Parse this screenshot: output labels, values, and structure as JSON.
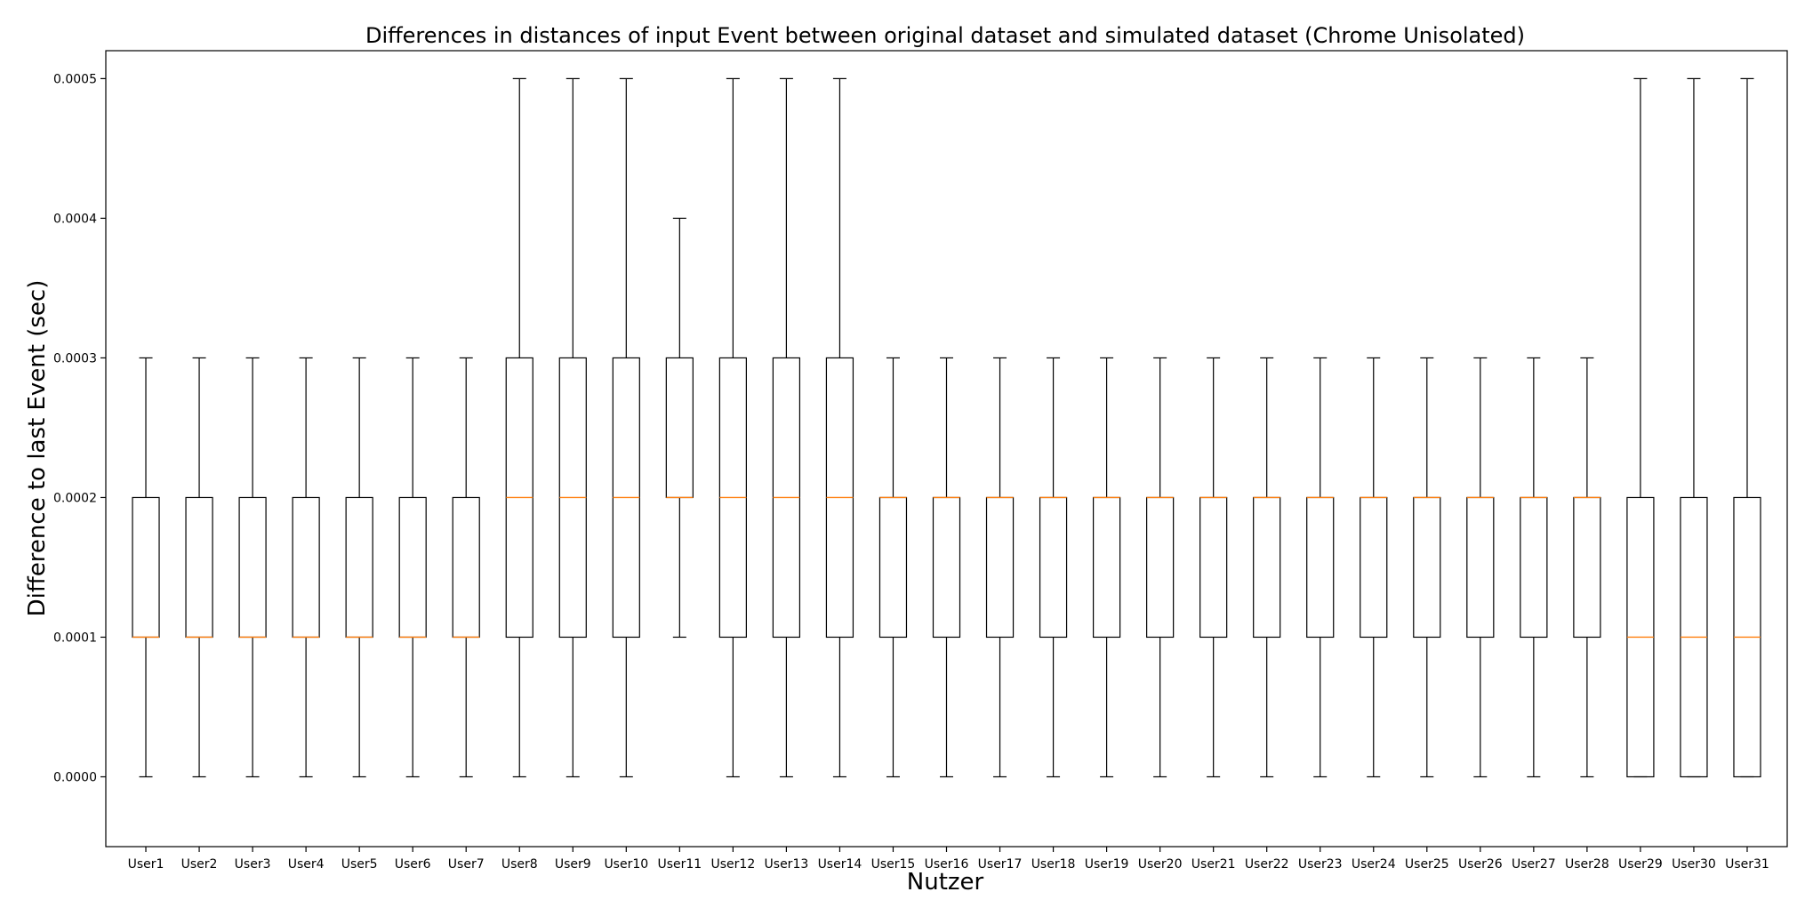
{
  "chart_data": {
    "type": "box",
    "title": "Differences in distances of input Event between original dataset and simulated dataset (Chrome Unisolated)",
    "xlabel": "Nutzer",
    "ylabel": "Difference to last Event (sec)",
    "ylim": [
      -5e-05,
      0.00052
    ],
    "yticks": [
      "0.0000",
      "0.0001",
      "0.0002",
      "0.0003",
      "0.0004",
      "0.0005"
    ],
    "grid": false,
    "colors": {
      "box": "#000000",
      "median": "#ff7f0e",
      "background": "#ffffff"
    },
    "categories": [
      "User1",
      "User2",
      "User3",
      "User4",
      "User5",
      "User6",
      "User7",
      "User8",
      "User9",
      "User10",
      "User11",
      "User12",
      "User13",
      "User14",
      "User15",
      "User16",
      "User17",
      "User18",
      "User19",
      "User20",
      "User21",
      "User22",
      "User23",
      "User24",
      "User25",
      "User26",
      "User27",
      "User28",
      "User29",
      "User30",
      "User31"
    ],
    "boxes": [
      {
        "min": 0.0,
        "q1": 0.0001,
        "median": 0.0001,
        "q3": 0.0002,
        "max": 0.0003
      },
      {
        "min": 0.0,
        "q1": 0.0001,
        "median": 0.0001,
        "q3": 0.0002,
        "max": 0.0003
      },
      {
        "min": 0.0,
        "q1": 0.0001,
        "median": 0.0001,
        "q3": 0.0002,
        "max": 0.0003
      },
      {
        "min": 0.0,
        "q1": 0.0001,
        "median": 0.0001,
        "q3": 0.0002,
        "max": 0.0003
      },
      {
        "min": 0.0,
        "q1": 0.0001,
        "median": 0.0001,
        "q3": 0.0002,
        "max": 0.0003
      },
      {
        "min": 0.0,
        "q1": 0.0001,
        "median": 0.0001,
        "q3": 0.0002,
        "max": 0.0003
      },
      {
        "min": 0.0,
        "q1": 0.0001,
        "median": 0.0001,
        "q3": 0.0002,
        "max": 0.0003
      },
      {
        "min": 0.0,
        "q1": 0.0001,
        "median": 0.0002,
        "q3": 0.0003,
        "max": 0.0005
      },
      {
        "min": 0.0,
        "q1": 0.0001,
        "median": 0.0002,
        "q3": 0.0003,
        "max": 0.0005
      },
      {
        "min": 0.0,
        "q1": 0.0001,
        "median": 0.0002,
        "q3": 0.0003,
        "max": 0.0005
      },
      {
        "min": 0.0001,
        "q1": 0.0002,
        "median": 0.0002,
        "q3": 0.0003,
        "max": 0.0004
      },
      {
        "min": 0.0,
        "q1": 0.0001,
        "median": 0.0002,
        "q3": 0.0003,
        "max": 0.0005
      },
      {
        "min": 0.0,
        "q1": 0.0001,
        "median": 0.0002,
        "q3": 0.0003,
        "max": 0.0005
      },
      {
        "min": 0.0,
        "q1": 0.0001,
        "median": 0.0002,
        "q3": 0.0003,
        "max": 0.0005
      },
      {
        "min": 0.0,
        "q1": 0.0001,
        "median": 0.0002,
        "q3": 0.0002,
        "max": 0.0003
      },
      {
        "min": 0.0,
        "q1": 0.0001,
        "median": 0.0002,
        "q3": 0.0002,
        "max": 0.0003
      },
      {
        "min": 0.0,
        "q1": 0.0001,
        "median": 0.0002,
        "q3": 0.0002,
        "max": 0.0003
      },
      {
        "min": 0.0,
        "q1": 0.0001,
        "median": 0.0002,
        "q3": 0.0002,
        "max": 0.0003
      },
      {
        "min": 0.0,
        "q1": 0.0001,
        "median": 0.0002,
        "q3": 0.0002,
        "max": 0.0003
      },
      {
        "min": 0.0,
        "q1": 0.0001,
        "median": 0.0002,
        "q3": 0.0002,
        "max": 0.0003
      },
      {
        "min": 0.0,
        "q1": 0.0001,
        "median": 0.0002,
        "q3": 0.0002,
        "max": 0.0003
      },
      {
        "min": 0.0,
        "q1": 0.0001,
        "median": 0.0002,
        "q3": 0.0002,
        "max": 0.0003
      },
      {
        "min": 0.0,
        "q1": 0.0001,
        "median": 0.0002,
        "q3": 0.0002,
        "max": 0.0003
      },
      {
        "min": 0.0,
        "q1": 0.0001,
        "median": 0.0002,
        "q3": 0.0002,
        "max": 0.0003
      },
      {
        "min": 0.0,
        "q1": 0.0001,
        "median": 0.0002,
        "q3": 0.0002,
        "max": 0.0003
      },
      {
        "min": 0.0,
        "q1": 0.0001,
        "median": 0.0002,
        "q3": 0.0002,
        "max": 0.0003
      },
      {
        "min": 0.0,
        "q1": 0.0001,
        "median": 0.0002,
        "q3": 0.0002,
        "max": 0.0003
      },
      {
        "min": 0.0,
        "q1": 0.0001,
        "median": 0.0002,
        "q3": 0.0002,
        "max": 0.0003
      },
      {
        "min": 0.0,
        "q1": 0.0,
        "median": 0.0001,
        "q3": 0.0002,
        "max": 0.0005
      },
      {
        "min": 0.0,
        "q1": 0.0,
        "median": 0.0001,
        "q3": 0.0002,
        "max": 0.0005
      },
      {
        "min": 0.0,
        "q1": 0.0,
        "median": 0.0001,
        "q3": 0.0002,
        "max": 0.0005
      }
    ]
  }
}
